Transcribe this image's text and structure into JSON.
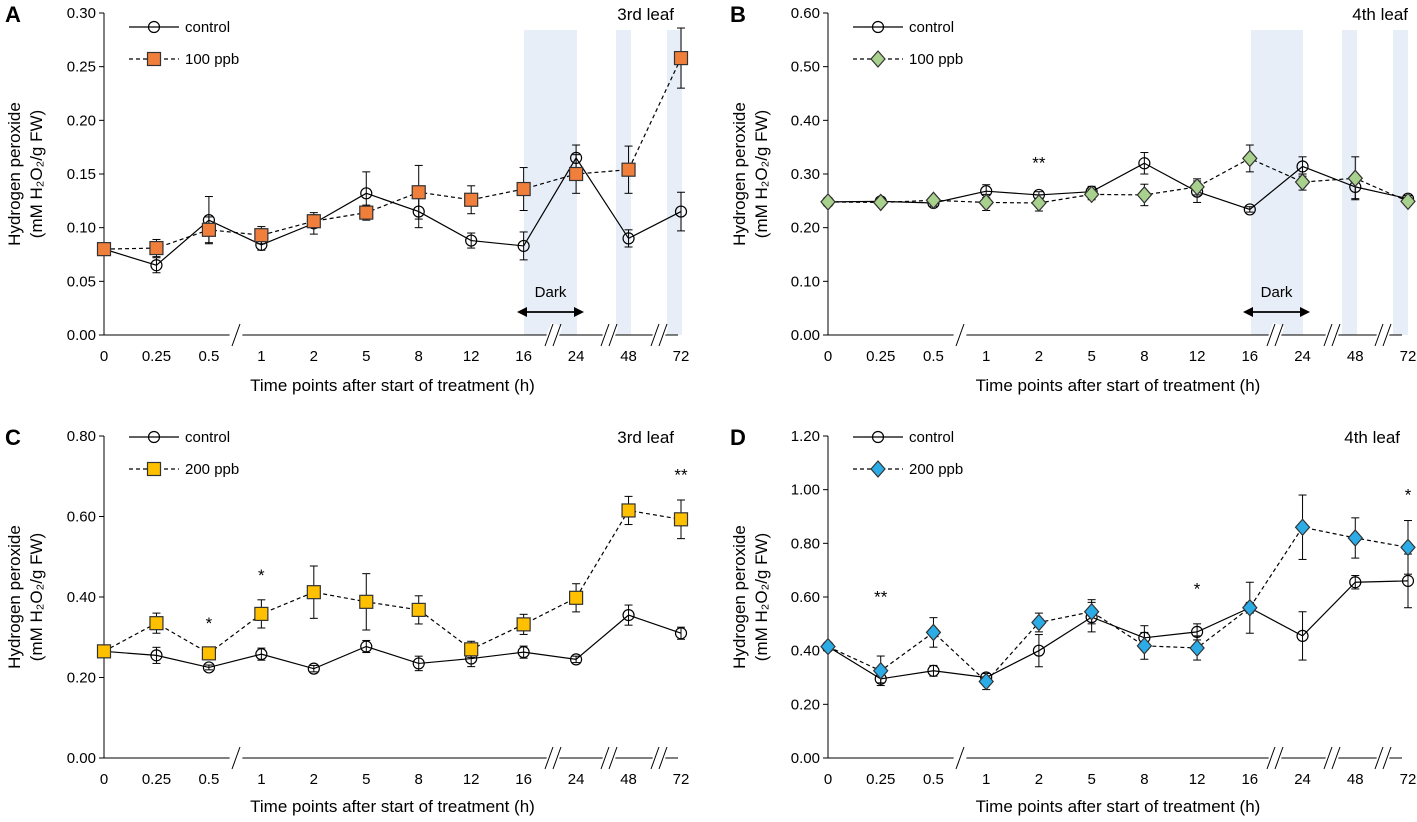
{
  "chart_data": [
    {
      "type": "line",
      "panel": "A",
      "leaf_label": "3rd leaf",
      "xlabel": "Time points after start of treatment (h)",
      "ylabel_line1": "Hydrogen peroxide",
      "ylabel_line2": "(mM H₂O₂/g FW)",
      "categories": [
        "0",
        "0.25",
        "0.5",
        "1",
        "2",
        "5",
        "8",
        "12",
        "16",
        "24",
        "48",
        "72"
      ],
      "ylim": [
        0,
        0.3
      ],
      "yticks": [
        "0.00",
        "0.05",
        "0.10",
        "0.15",
        "0.20",
        "0.25",
        "0.30"
      ],
      "dark_label": "Dark",
      "series": [
        {
          "name": "control",
          "marker": "circle",
          "values": [
            0.08,
            0.065,
            0.107,
            0.084,
            0.104,
            0.132,
            0.115,
            0.088,
            0.083,
            0.165,
            0.09,
            0.115
          ],
          "errors": [
            0.004,
            0.007,
            0.022,
            0.005,
            0.01,
            0.02,
            0.015,
            0.007,
            0.013,
            0.012,
            0.008,
            0.018
          ]
        },
        {
          "name": "100 ppb",
          "marker": "square",
          "color": "#f07f3c",
          "values": [
            0.08,
            0.081,
            0.098,
            0.093,
            0.106,
            0.114,
            0.133,
            0.126,
            0.136,
            0.15,
            0.154,
            0.258
          ],
          "errors": [
            0.003,
            0.008,
            0.012,
            0.008,
            0.006,
            0.007,
            0.025,
            0.013,
            0.02,
            0.018,
            0.022,
            0.028
          ]
        }
      ],
      "significance": []
    },
    {
      "type": "line",
      "panel": "B",
      "leaf_label": "4th leaf",
      "xlabel": "Time points after start of treatment (h)",
      "ylabel_line1": "Hydrogen peroxide",
      "ylabel_line2": "(mM H₂O₂/g FW)",
      "categories": [
        "0",
        "0.25",
        "0.5",
        "1",
        "2",
        "5",
        "8",
        "12",
        "16",
        "24",
        "48",
        "72"
      ],
      "ylim": [
        0,
        0.6
      ],
      "yticks": [
        "0.00",
        "0.10",
        "0.20",
        "0.30",
        "0.40",
        "0.50",
        "0.60"
      ],
      "dark_label": "Dark",
      "series": [
        {
          "name": "control",
          "marker": "circle",
          "values": [
            0.248,
            0.249,
            0.246,
            0.268,
            0.261,
            0.267,
            0.32,
            0.267,
            0.234,
            0.314,
            0.276,
            0.254
          ],
          "errors": [
            0.004,
            0.005,
            0.006,
            0.012,
            0.006,
            0.01,
            0.02,
            0.02,
            0.005,
            0.018,
            0.022,
            0.006
          ]
        },
        {
          "name": "100 ppb",
          "marker": "diamond",
          "color": "#a9d18e",
          "values": [
            0.248,
            0.247,
            0.251,
            0.247,
            0.246,
            0.262,
            0.261,
            0.276,
            0.329,
            0.285,
            0.292,
            0.249
          ],
          "errors": [
            0.003,
            0.005,
            0.005,
            0.015,
            0.015,
            0.01,
            0.02,
            0.015,
            0.025,
            0.015,
            0.04,
            0.005
          ]
        }
      ],
      "significance": [
        {
          "label": "**",
          "category": "2",
          "value": 0.31
        }
      ]
    },
    {
      "type": "line",
      "panel": "C",
      "leaf_label": "3rd leaf",
      "xlabel": "Time points after start of treatment (h)",
      "ylabel_line1": "Hydrogen peroxide",
      "ylabel_line2": "(mM H₂O₂/g FW)",
      "categories": [
        "0",
        "0.25",
        "0.5",
        "1",
        "2",
        "5",
        "8",
        "12",
        "16",
        "24",
        "48",
        "72"
      ],
      "ylim": [
        0,
        0.8
      ],
      "yticks": [
        "0.00",
        "0.20",
        "0.40",
        "0.60",
        "0.80"
      ],
      "series": [
        {
          "name": "control",
          "marker": "circle",
          "values": [
            0.265,
            0.255,
            0.225,
            0.258,
            0.222,
            0.277,
            0.235,
            0.247,
            0.263,
            0.245,
            0.355,
            0.31
          ],
          "errors": [
            0.005,
            0.02,
            0.006,
            0.015,
            0.008,
            0.015,
            0.018,
            0.02,
            0.015,
            0.008,
            0.025,
            0.015
          ]
        },
        {
          "name": "200 ppb",
          "marker": "square",
          "color": "#ffc000",
          "values": [
            0.265,
            0.335,
            0.26,
            0.358,
            0.412,
            0.388,
            0.368,
            0.27,
            0.332,
            0.398,
            0.615,
            0.593
          ],
          "errors": [
            0.005,
            0.025,
            0.008,
            0.035,
            0.065,
            0.07,
            0.035,
            0.02,
            0.025,
            0.035,
            0.035,
            0.048
          ]
        }
      ],
      "significance": [
        {
          "label": "*",
          "category": "0.5",
          "value": 0.32
        },
        {
          "label": "*",
          "category": "1",
          "value": 0.44
        },
        {
          "label": "**",
          "category": "72",
          "value": 0.69
        }
      ]
    },
    {
      "type": "line",
      "panel": "D",
      "leaf_label": "4th leaf",
      "xlabel": "Time points after start of treatment (h)",
      "ylabel_line1": "Hydrogen peroxide",
      "ylabel_line2": "(mM H₂O₂/g FW)",
      "categories": [
        "0",
        "0.25",
        "0.5",
        "1",
        "2",
        "5",
        "8",
        "12",
        "16",
        "24",
        "48",
        "72"
      ],
      "ylim": [
        0,
        1.2
      ],
      "yticks": [
        "0.00",
        "0.20",
        "0.40",
        "0.60",
        "0.80",
        "1.00",
        "1.20"
      ],
      "series": [
        {
          "name": "control",
          "marker": "circle",
          "values": [
            0.415,
            0.295,
            0.325,
            0.3,
            0.4,
            0.525,
            0.448,
            0.47,
            0.56,
            0.455,
            0.655,
            0.66
          ],
          "errors": [
            0.01,
            0.015,
            0.02,
            0.015,
            0.06,
            0.055,
            0.045,
            0.03,
            0.095,
            0.09,
            0.025,
            0.1
          ]
        },
        {
          "name": "200 ppb",
          "marker": "diamond",
          "color": "#2cace6",
          "values": [
            0.415,
            0.325,
            0.468,
            0.285,
            0.505,
            0.545,
            0.418,
            0.41,
            0.56,
            0.86,
            0.82,
            0.785
          ],
          "errors": [
            0.01,
            0.055,
            0.055,
            0.03,
            0.035,
            0.045,
            0.05,
            0.045,
            0.02,
            0.12,
            0.075,
            0.1
          ]
        }
      ],
      "significance": [
        {
          "label": "**",
          "category": "0.25",
          "value": 0.58
        },
        {
          "label": "*",
          "category": "12",
          "value": 0.61
        },
        {
          "label": "*",
          "category": "72",
          "value": 0.96
        }
      ]
    }
  ]
}
